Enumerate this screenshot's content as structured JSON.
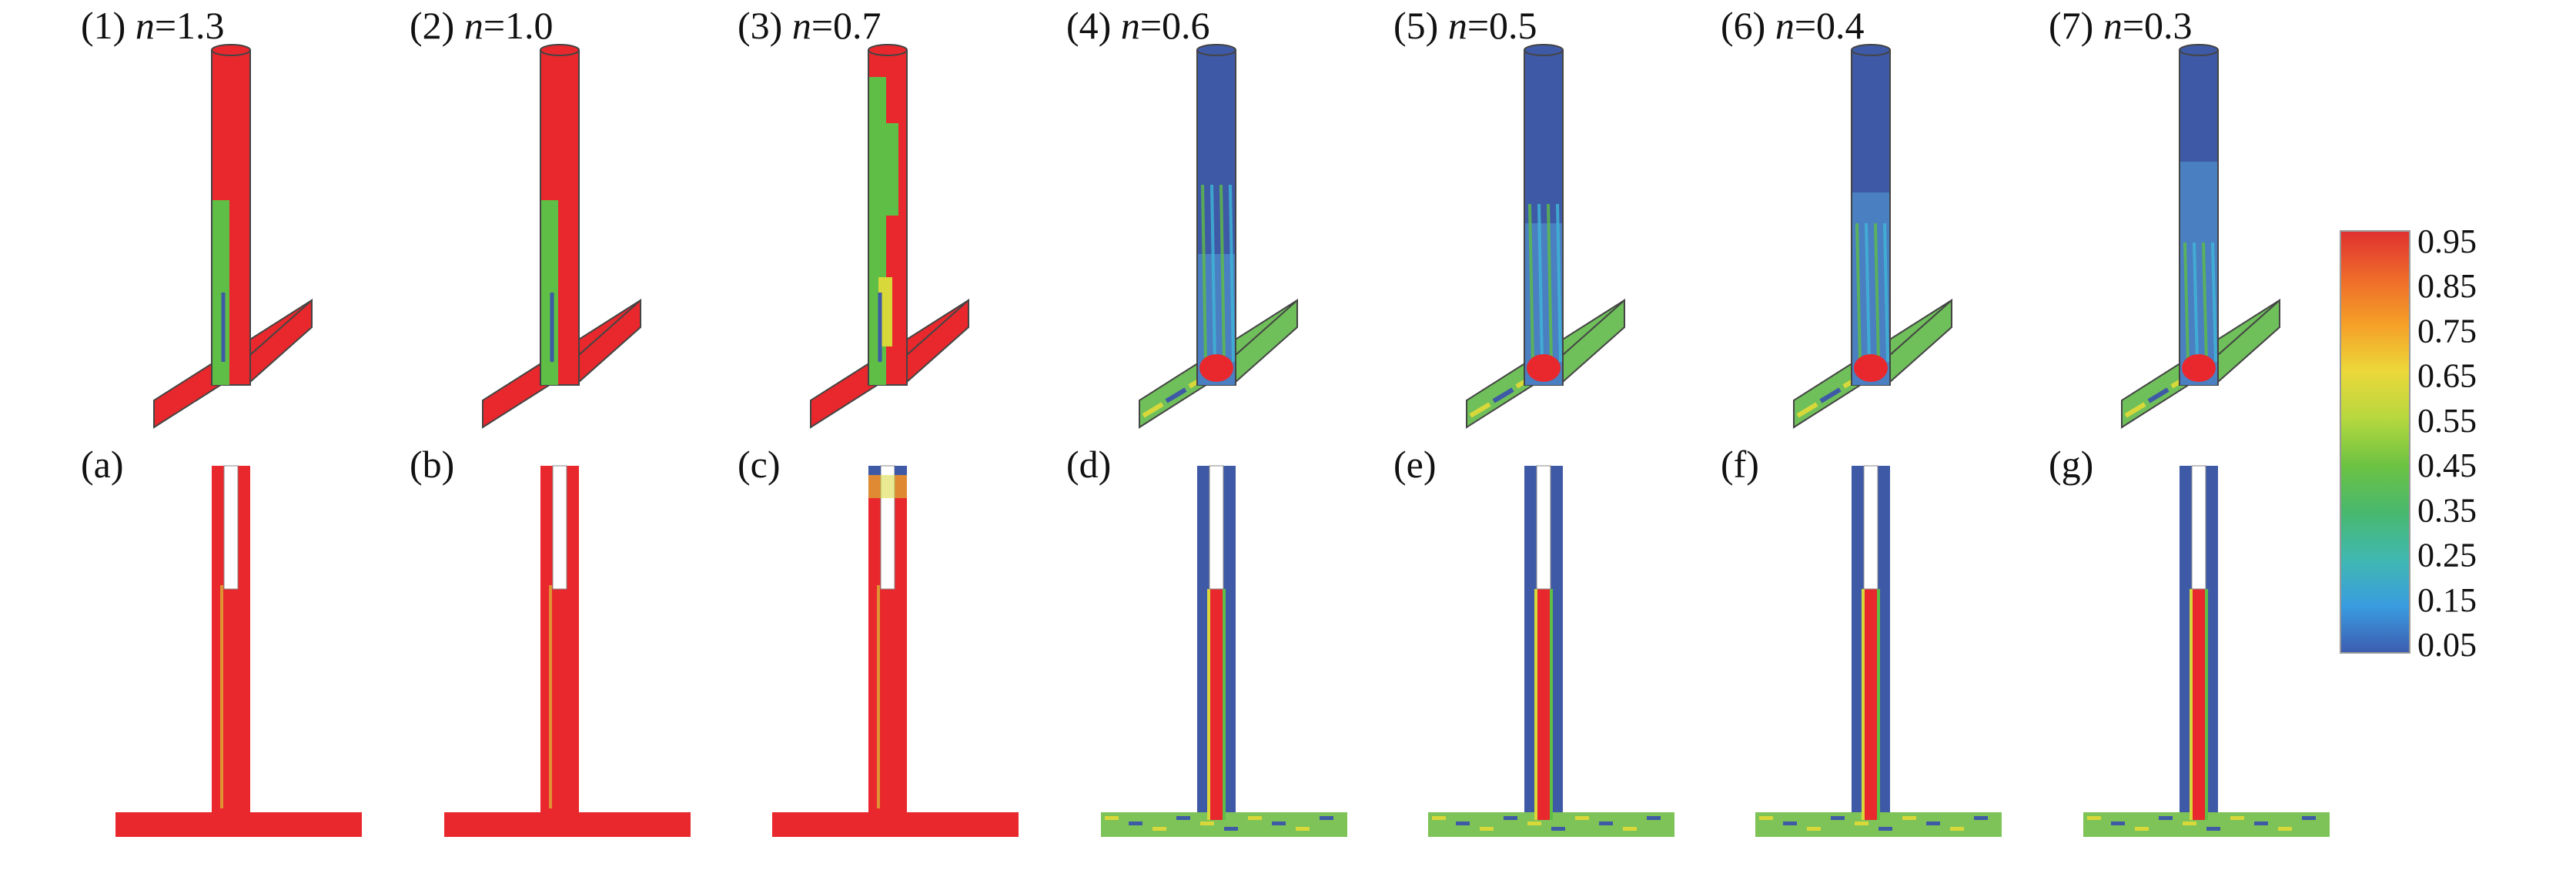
{
  "colors": {
    "red": "#e8282c",
    "green": "#5fbe45",
    "blue": "#3e5aa6",
    "cyan": "#3fb8d8",
    "yellow": "#d8d83a",
    "white": "#ffffff",
    "outline": "#444444"
  },
  "colorbar": {
    "ticks": [
      "0.95",
      "0.85",
      "0.75",
      "0.65",
      "0.55",
      "0.45",
      "0.35",
      "0.25",
      "0.15",
      "0.05"
    ],
    "stops": [
      "#e03030",
      "#ee6a2a",
      "#f5a028",
      "#ecd83a",
      "#b6d83e",
      "#6cc242",
      "#48b86e",
      "#40b8b0",
      "#3a9ce0",
      "#3c5cb0"
    ]
  },
  "panels": [
    {
      "top_label": "(1) ",
      "n_symbol": "n",
      "n_value": "=1.3",
      "bottom_label": "(a)",
      "tube": "red",
      "upper": "red",
      "inlet": "red",
      "jet": "red"
    },
    {
      "top_label": "(2) ",
      "n_symbol": "n",
      "n_value": "=1.0",
      "bottom_label": "(b)",
      "tube": "red",
      "upper": "red",
      "inlet": "red",
      "jet": "red"
    },
    {
      "top_label": "(3) ",
      "n_symbol": "n",
      "n_value": "=0.7",
      "bottom_label": "(c)",
      "tube": "red",
      "upper": "mix",
      "inlet": "red",
      "jet": "red"
    },
    {
      "top_label": "(4) ",
      "n_symbol": "n",
      "n_value": "=0.6",
      "bottom_label": "(d)",
      "tube": "blue",
      "upper": "blue",
      "inlet": "mixed",
      "jet": "red"
    },
    {
      "top_label": "(5) ",
      "n_symbol": "n",
      "n_value": "=0.5",
      "bottom_label": "(e)",
      "tube": "blue",
      "upper": "blue",
      "inlet": "mixed",
      "jet": "red"
    },
    {
      "top_label": "(6) ",
      "n_symbol": "n",
      "n_value": "=0.4",
      "bottom_label": "(f)",
      "tube": "blue",
      "upper": "blue",
      "inlet": "mixed",
      "jet": "red"
    },
    {
      "top_label": "(7) ",
      "n_symbol": "n",
      "n_value": "=0.3",
      "bottom_label": "(g)",
      "tube": "blue",
      "upper": "blue",
      "inlet": "mixed",
      "jet": "red"
    }
  ]
}
